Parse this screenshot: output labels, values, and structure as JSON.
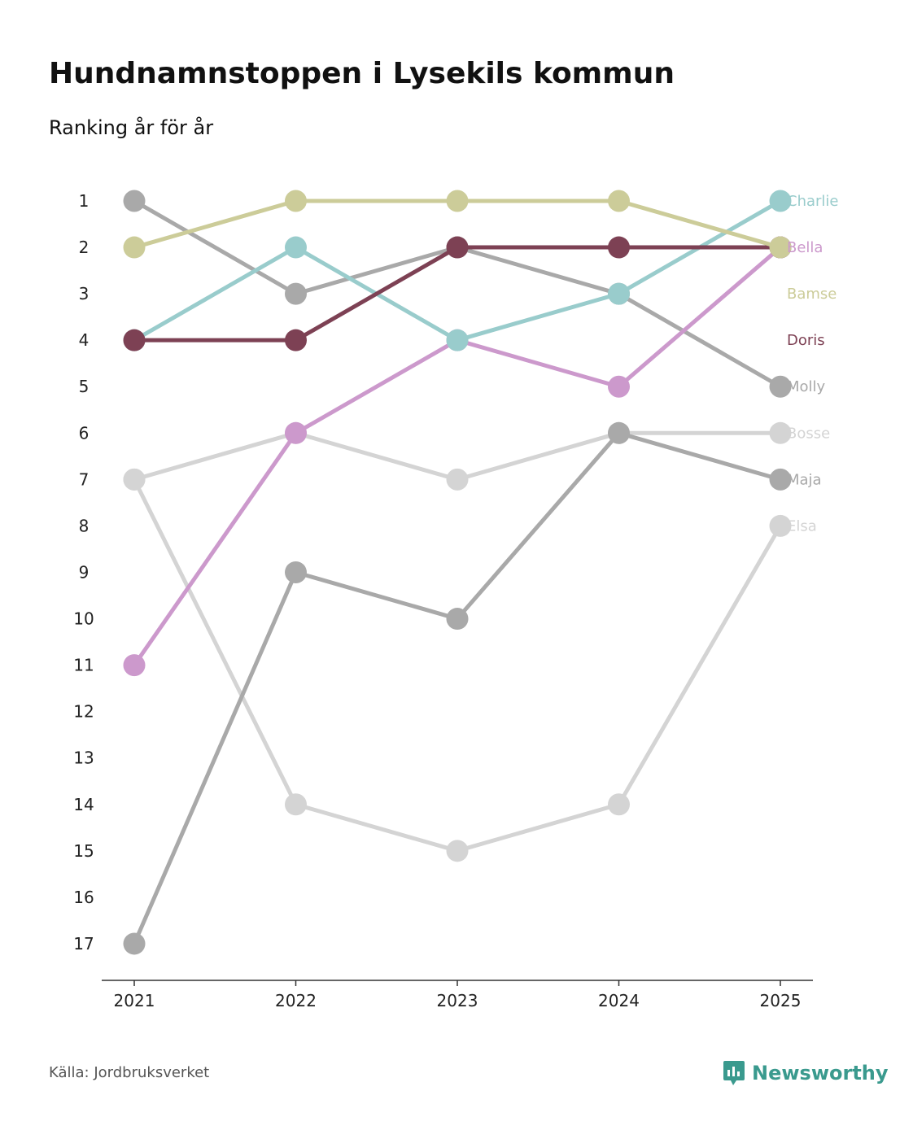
{
  "header": {
    "title": "Hundnamnstoppen i Lysekils kommun",
    "subtitle": "Ranking år för år"
  },
  "footer": {
    "source": "Källa: Jordbruksverket",
    "brand": "Newsworthy",
    "brand_color": "#3a9a8e"
  },
  "chart_data": {
    "type": "line",
    "title": "Hundnamnstoppen i Lysekils kommun",
    "subtitle": "Ranking år för år",
    "xlabel": "",
    "ylabel": "",
    "x": [
      "2021",
      "2022",
      "2023",
      "2024",
      "2025"
    ],
    "ylim": [
      1,
      17
    ],
    "y_inverted": true,
    "y_ticks": [
      "1",
      "2",
      "3",
      "4",
      "5",
      "6",
      "7",
      "8",
      "9",
      "10",
      "11",
      "12",
      "13",
      "14",
      "15",
      "16",
      "17"
    ],
    "grid": false,
    "legend": "direct labels at right end",
    "series": [
      {
        "name": "Elsa",
        "color": "#d4d4d4",
        "values": [
          7,
          14,
          15,
          14,
          8
        ]
      },
      {
        "name": "Bosse",
        "color": "#d4d4d4",
        "values": [
          7,
          6,
          7,
          6,
          6
        ]
      },
      {
        "name": "Maja",
        "color": "#a9a9a9",
        "values": [
          17,
          9,
          10,
          6,
          7
        ]
      },
      {
        "name": "Molly",
        "color": "#a9a9a9",
        "values": [
          1,
          3,
          2,
          3,
          5
        ]
      },
      {
        "name": "Bella",
        "color": "#cc99cc",
        "values": [
          11,
          6,
          4,
          5,
          2
        ]
      },
      {
        "name": "Charlie",
        "color": "#99cccc",
        "values": [
          4,
          2,
          4,
          3,
          1
        ]
      },
      {
        "name": "Doris",
        "color": "#7d4154",
        "values": [
          4,
          4,
          2,
          2,
          2
        ]
      },
      {
        "name": "Bamse",
        "color": "#cccc99",
        "values": [
          2,
          1,
          1,
          1,
          2
        ]
      }
    ]
  }
}
